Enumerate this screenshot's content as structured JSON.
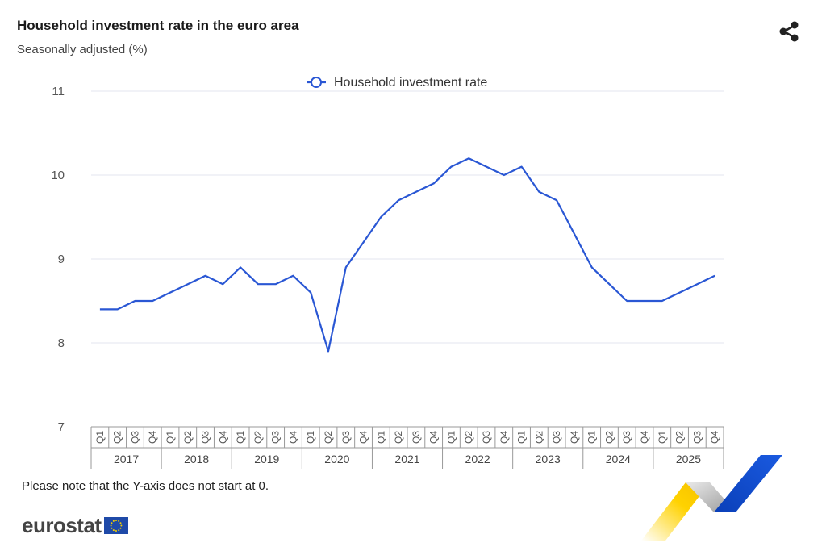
{
  "title": "Household investment rate in the euro area",
  "subtitle": "Seasonally adjusted (%)",
  "note": "Please note that the Y-axis does not start at 0.",
  "logo_text": "eurostat",
  "icons": {
    "share": "share-icon",
    "flag": "eu-flag-icon"
  },
  "colors": {
    "series": "#2a57d4",
    "grid": "#e3e6ef",
    "axis": "#999999"
  },
  "chart_data": {
    "type": "line",
    "title": "Household investment rate in the euro area",
    "subtitle": "Seasonally adjusted (%)",
    "ylim": [
      7,
      11
    ],
    "yticks": [
      "7",
      "8",
      "9",
      "10",
      "11"
    ],
    "grid": true,
    "legend": "top-center",
    "quarters": [
      "Q1",
      "Q2",
      "Q3",
      "Q4"
    ],
    "years": [
      "2017",
      "2018",
      "2019",
      "2020",
      "2021",
      "2022",
      "2023",
      "2024",
      "2025"
    ],
    "series": [
      {
        "name": "Household investment rate",
        "values": [
          8.4,
          8.4,
          8.5,
          8.5,
          8.6,
          8.7,
          8.8,
          8.7,
          8.9,
          8.7,
          8.7,
          8.8,
          8.6,
          7.9,
          8.9,
          9.2,
          9.5,
          9.7,
          9.8,
          9.9,
          10.1,
          10.2,
          10.1,
          10.0,
          10.1,
          9.8,
          9.7,
          9.3,
          8.9,
          8.7,
          8.5,
          8.5,
          8.5,
          8.6,
          8.7,
          8.8
        ]
      }
    ]
  }
}
